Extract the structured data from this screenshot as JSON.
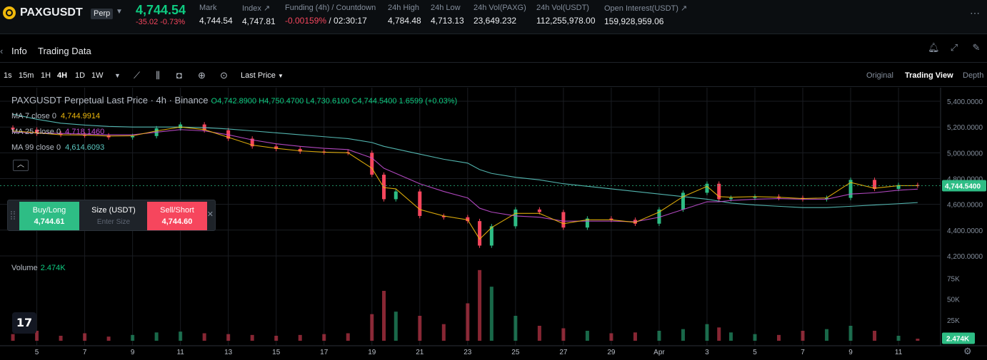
{
  "ticker": {
    "symbol": "PAXGUSDT",
    "badge": "Perp",
    "last_price": "4,744.54",
    "change": "-35.02 -0.73%",
    "stats": [
      {
        "label": "Mark",
        "value": "4,744.54",
        "negative": false
      },
      {
        "label": "Index ↗",
        "value": "4,747.81",
        "negative": false
      },
      {
        "label": "Funding (4h) / Countdown",
        "value": "-0.00159%",
        "value2": " / 02:30:17",
        "negative": true
      },
      {
        "label": "24h High",
        "value": "4,784.48",
        "negative": false
      },
      {
        "label": "24h Low",
        "value": "4,713.13",
        "negative": false
      },
      {
        "label": "24h Vol(PAXG)",
        "value": "23,649.232",
        "negative": false
      },
      {
        "label": "24h Vol(USDT)",
        "value": "112,255,978.00",
        "negative": false
      },
      {
        "label": "Open Interest(USDT) ↗",
        "value": "159,928,959.06",
        "negative": false
      }
    ]
  },
  "tabs": {
    "info": "Info",
    "trading_data": "Trading Data"
  },
  "toolbar": {
    "timeframes": [
      "1s",
      "15m",
      "1H",
      "4H",
      "1D",
      "1W"
    ],
    "active_timeframe": "4H",
    "price_type": "Last Price",
    "views": [
      "Original",
      "Trading View",
      "Depth"
    ],
    "active_view": "Trading View"
  },
  "legend": {
    "title": "PAXGUSDT Perpetual Last Price · 4h · Binance",
    "ohlc": "O4,742.8900 H4,750.4700 L4,730.6100 C4,744.5400 1.6599 (+0.03%)",
    "ma7_label": "MA 7 close 0",
    "ma7_value": "4,744.9914",
    "ma25_label": "MA 25 close 0",
    "ma25_value": "4,718.1460",
    "ma99_label": "MA 99 close 0",
    "ma99_value": "4,614.6093",
    "volume_label": "Volume",
    "volume_value": "2.474K"
  },
  "order_widget": {
    "buy_label": "Buy/Long",
    "buy_price": "4,744.61",
    "size_label": "Size (USDT)",
    "size_placeholder": "Enter Size",
    "sell_label": "Sell/Short",
    "sell_price": "4,744.60"
  },
  "colors": {
    "up": "#2ebd85",
    "down": "#f6465d",
    "ma7": "#f0b90b",
    "ma25": "#c34fd3",
    "ma99": "#5bc8c1"
  },
  "chart_data": {
    "type": "candlestick",
    "x_labels": [
      "5",
      "7",
      "9",
      "11",
      "13",
      "15",
      "17",
      "19",
      "21",
      "23",
      "25",
      "27",
      "29",
      "Apr",
      "3",
      "5",
      "7",
      "9",
      "11"
    ],
    "price_ticks": [
      "5,400.0000",
      "5,200.0000",
      "5,000.0000",
      "4,800.0000",
      "4,600.0000",
      "4,400.0000",
      "4,200.0000"
    ],
    "price_tick_values": [
      5400,
      5200,
      5000,
      4800,
      4600,
      4400,
      4200
    ],
    "current_price_label": "4,744.5400",
    "current_price": 4744.54,
    "volume_ticks": [
      "75K",
      "50K",
      "25K"
    ],
    "volume_tick_values": [
      75000,
      50000,
      25000
    ],
    "current_volume_label": "2.474K",
    "close_series": [
      {
        "day": 4,
        "close": 5180
      },
      {
        "day": 5,
        "close": 5150
      },
      {
        "day": 6,
        "close": 5140
      },
      {
        "day": 7,
        "close": 5135
      },
      {
        "day": 8,
        "close": 5120
      },
      {
        "day": 9,
        "close": 5130
      },
      {
        "day": 10,
        "close": 5190
      },
      {
        "day": 11,
        "close": 5220
      },
      {
        "day": 12,
        "close": 5175
      },
      {
        "day": 13,
        "close": 5110
      },
      {
        "day": 14,
        "close": 5050
      },
      {
        "day": 15,
        "close": 5030
      },
      {
        "day": 16,
        "close": 5010
      },
      {
        "day": 17,
        "close": 5005
      },
      {
        "day": 18,
        "close": 5000
      },
      {
        "day": 19,
        "close": 4830
      },
      {
        "day": 19.5,
        "close": 4640
      },
      {
        "day": 20,
        "close": 4700
      },
      {
        "day": 21,
        "close": 4510
      },
      {
        "day": 22,
        "close": 4500
      },
      {
        "day": 23,
        "close": 4470
      },
      {
        "day": 23.5,
        "close": 4280
      },
      {
        "day": 24,
        "close": 4430
      },
      {
        "day": 25,
        "close": 4560
      },
      {
        "day": 26,
        "close": 4540
      },
      {
        "day": 27,
        "close": 4420
      },
      {
        "day": 28,
        "close": 4490
      },
      {
        "day": 29,
        "close": 4480
      },
      {
        "day": 30,
        "close": 4450
      },
      {
        "day": 31,
        "close": 4560
      },
      {
        "day": 32,
        "close": 4690
      },
      {
        "day": 33,
        "close": 4760
      },
      {
        "day": 33.5,
        "close": 4640
      },
      {
        "day": 34,
        "close": 4650
      },
      {
        "day": 35,
        "close": 4660
      },
      {
        "day": 36,
        "close": 4650
      },
      {
        "day": 37,
        "close": 4640
      },
      {
        "day": 38,
        "close": 4650
      },
      {
        "day": 39,
        "close": 4790
      },
      {
        "day": 40,
        "close": 4720
      },
      {
        "day": 41,
        "close": 4750
      },
      {
        "day": 41.8,
        "close": 4744.54
      }
    ],
    "volume_series": [
      {
        "day": 4,
        "vol": 8000
      },
      {
        "day": 5,
        "vol": 12000
      },
      {
        "day": 6,
        "vol": 6000
      },
      {
        "day": 7,
        "vol": 9000
      },
      {
        "day": 8,
        "vol": 5000
      },
      {
        "day": 9,
        "vol": 7000
      },
      {
        "day": 10,
        "vol": 10000
      },
      {
        "day": 11,
        "vol": 11000
      },
      {
        "day": 12,
        "vol": 9000
      },
      {
        "day": 13,
        "vol": 8000
      },
      {
        "day": 14,
        "vol": 7000
      },
      {
        "day": 15,
        "vol": 6000
      },
      {
        "day": 16,
        "vol": 7000
      },
      {
        "day": 17,
        "vol": 8000
      },
      {
        "day": 18,
        "vol": 9000
      },
      {
        "day": 19,
        "vol": 32000
      },
      {
        "day": 19.5,
        "vol": 60000
      },
      {
        "day": 20,
        "vol": 35000
      },
      {
        "day": 21,
        "vol": 30000
      },
      {
        "day": 22,
        "vol": 20000
      },
      {
        "day": 23,
        "vol": 45000
      },
      {
        "day": 23.5,
        "vol": 85000
      },
      {
        "day": 24,
        "vol": 65000
      },
      {
        "day": 25,
        "vol": 30000
      },
      {
        "day": 26,
        "vol": 18000
      },
      {
        "day": 27,
        "vol": 15000
      },
      {
        "day": 28,
        "vol": 12000
      },
      {
        "day": 29,
        "vol": 9000
      },
      {
        "day": 30,
        "vol": 10000
      },
      {
        "day": 31,
        "vol": 12000
      },
      {
        "day": 32,
        "vol": 14000
      },
      {
        "day": 33,
        "vol": 20000
      },
      {
        "day": 33.5,
        "vol": 16000
      },
      {
        "day": 34,
        "vol": 10000
      },
      {
        "day": 35,
        "vol": 8000
      },
      {
        "day": 36,
        "vol": 7000
      },
      {
        "day": 37,
        "vol": 12000
      },
      {
        "day": 38,
        "vol": 14000
      },
      {
        "day": 39,
        "vol": 18000
      },
      {
        "day": 40,
        "vol": 12000
      },
      {
        "day": 41,
        "vol": 6000
      },
      {
        "day": 41.8,
        "vol": 2474
      }
    ],
    "ma7": [
      5170,
      5155,
      5140,
      5138,
      5130,
      5132,
      5170,
      5200,
      5180,
      5120,
      5060,
      5035,
      5015,
      5005,
      5000,
      4880,
      4730,
      4720,
      4560,
      4510,
      4480,
      4330,
      4420,
      4530,
      4530,
      4450,
      4480,
      4480,
      4460,
      4540,
      4660,
      4740,
      4660,
      4655,
      4660,
      4655,
      4645,
      4650,
      4770,
      4725,
      4745,
      4745
    ],
    "ma25": [
      5160,
      5155,
      5150,
      5145,
      5140,
      5140,
      5160,
      5180,
      5170,
      5140,
      5100,
      5070,
      5050,
      5035,
      5025,
      4960,
      4880,
      4840,
      4760,
      4700,
      4650,
      4570,
      4540,
      4510,
      4500,
      4470,
      4470,
      4470,
      4465,
      4500,
      4560,
      4620,
      4620,
      4630,
      4640,
      4645,
      4640,
      4640,
      4680,
      4690,
      4710,
      4718
    ],
    "ma99": [
      5300,
      5260,
      5230,
      5215,
      5205,
      5200,
      5200,
      5200,
      5195,
      5185,
      5170,
      5155,
      5140,
      5125,
      5110,
      5080,
      5050,
      5030,
      4990,
      4950,
      4920,
      4870,
      4840,
      4810,
      4790,
      4760,
      4740,
      4720,
      4700,
      4680,
      4660,
      4640,
      4625,
      4610,
      4595,
      4585,
      4575,
      4575,
      4585,
      4595,
      4605,
      4614
    ]
  }
}
